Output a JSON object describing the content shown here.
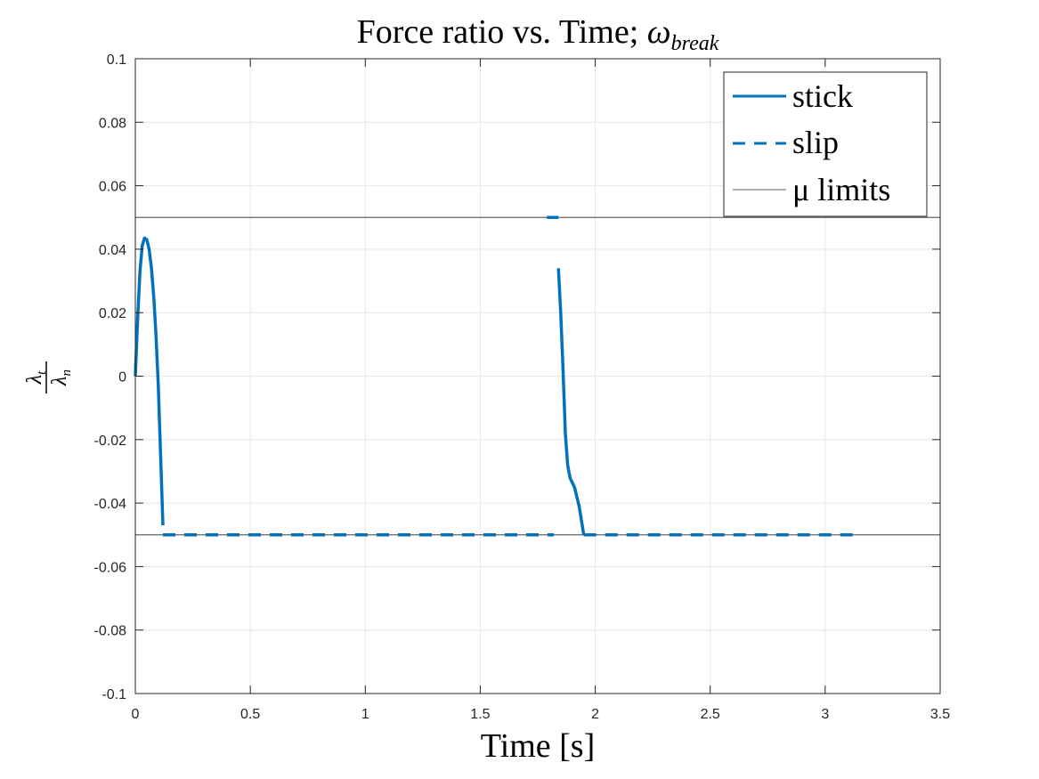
{
  "chart_data": {
    "type": "line",
    "title": "Force ratio vs. Time; ",
    "title_symbol": "ω",
    "title_subscript": "break",
    "xlabel": "Time [s]",
    "ylabel_numerator": "λ",
    "ylabel_numerator_sub": "t",
    "ylabel_denominator": "λ",
    "ylabel_denominator_sub": "n",
    "xlim": [
      0,
      3.5
    ],
    "ylim": [
      -0.1,
      0.1
    ],
    "xticks": [
      0,
      0.5,
      1,
      1.5,
      2,
      2.5,
      3,
      3.5
    ],
    "xtick_labels": [
      "0",
      "0.5",
      "1",
      "1.5",
      "2",
      "2.5",
      "3",
      "3.5"
    ],
    "yticks": [
      0.1,
      0.08,
      0.06,
      0.04,
      0.02,
      0,
      -0.02,
      -0.04,
      -0.06,
      -0.08,
      -0.1
    ],
    "ytick_labels": [
      "0.1",
      "0.08",
      "0.06",
      "0.04",
      "0.02",
      "0",
      "-0.02",
      "-0.04",
      "-0.06",
      "-0.08",
      "-0.1"
    ],
    "grid": true,
    "legend_position": "top-right",
    "colors": {
      "series": "#0072BD",
      "limits": "#262626",
      "grid": "#e6e6e6",
      "axes": "#262626"
    },
    "series": [
      {
        "name": "stick",
        "style": "solid",
        "segments": [
          [
            [
              0,
              0.0
            ],
            [
              0.01,
              0.018
            ],
            [
              0.02,
              0.033
            ],
            [
              0.03,
              0.041
            ],
            [
              0.04,
              0.0435
            ],
            [
              0.05,
              0.043
            ],
            [
              0.06,
              0.04
            ],
            [
              0.07,
              0.034
            ],
            [
              0.08,
              0.025
            ],
            [
              0.09,
              0.013
            ],
            [
              0.1,
              -0.003
            ],
            [
              0.11,
              -0.025
            ],
            [
              0.12,
              -0.047
            ]
          ],
          [
            [
              1.84,
              0.034
            ],
            [
              1.85,
              0.02
            ],
            [
              1.86,
              0.002
            ],
            [
              1.87,
              -0.018
            ],
            [
              1.88,
              -0.028
            ],
            [
              1.89,
              -0.032
            ],
            [
              1.91,
              -0.035
            ],
            [
              1.93,
              -0.041
            ],
            [
              1.95,
              -0.05
            ]
          ]
        ]
      },
      {
        "name": "slip",
        "style": "dashed",
        "segments": [
          [
            [
              0.12,
              -0.05
            ],
            [
              1.82,
              -0.05
            ]
          ],
          [
            [
              1.79,
              0.05
            ],
            [
              1.84,
              0.05
            ]
          ],
          [
            [
              1.95,
              -0.05
            ],
            [
              3.13,
              -0.05
            ]
          ]
        ]
      },
      {
        "name": "μ limits",
        "style": "thin",
        "segments": [
          [
            [
              0,
              0.05
            ],
            [
              3.5,
              0.05
            ]
          ],
          [
            [
              0,
              -0.05
            ],
            [
              3.5,
              -0.05
            ]
          ]
        ]
      }
    ]
  }
}
